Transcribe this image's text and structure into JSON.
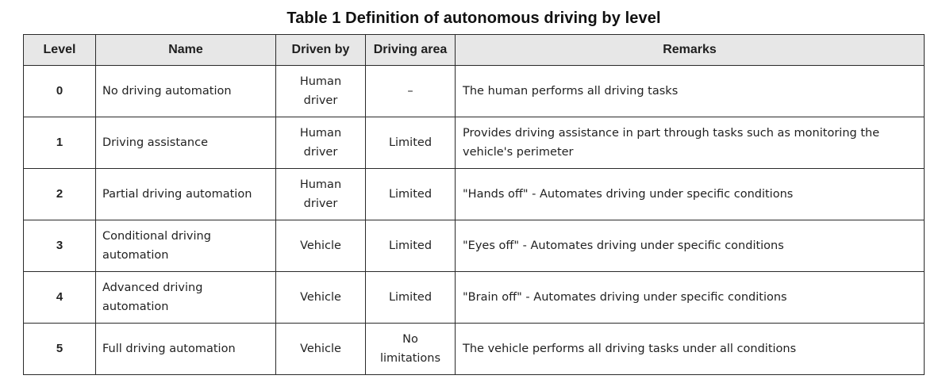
{
  "title": "Table 1 Definition of autonomous driving by level",
  "table": {
    "headers": {
      "level": "Level",
      "name": "Name",
      "driven_by": "Driven by",
      "driving_area": "Driving area",
      "remarks": "Remarks"
    },
    "rows": [
      {
        "level": "0",
        "name": "No driving automation",
        "driven_by": "Human driver",
        "driving_area": "–",
        "remarks": "The human performs all driving tasks"
      },
      {
        "level": "1",
        "name": "Driving assistance",
        "driven_by": "Human driver",
        "driving_area": "Limited",
        "remarks": "Provides driving assistance in part through tasks such as monitoring the vehicle's perimeter"
      },
      {
        "level": "2",
        "name": "Partial driving automation",
        "driven_by": "Human driver",
        "driving_area": "Limited",
        "remarks": "\"Hands off\" - Automates driving under specific conditions"
      },
      {
        "level": "3",
        "name": "Conditional driving automation",
        "driven_by": "Vehicle",
        "driving_area": "Limited",
        "remarks": "\"Eyes off\" - Automates driving under specific conditions"
      },
      {
        "level": "4",
        "name": "Advanced driving automation",
        "driven_by": "Vehicle",
        "driving_area": "Limited",
        "remarks": "\"Brain off\" - Automates driving under specific conditions"
      },
      {
        "level": "5",
        "name": "Full driving automation",
        "driven_by": "Vehicle",
        "driving_area": "No limitations",
        "remarks": "The vehicle performs all driving tasks under all conditions"
      }
    ]
  }
}
